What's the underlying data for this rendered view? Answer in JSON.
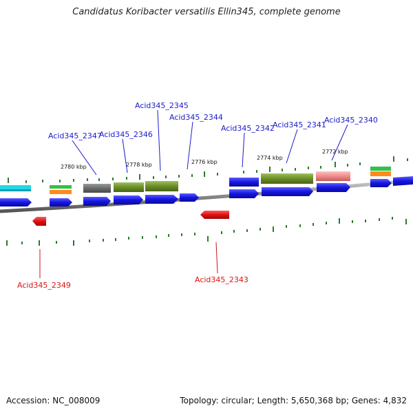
{
  "title": "Candidatus Koribacter versatilis Ellin345, complete genome",
  "footer": {
    "accession": "Accession: NC_008009",
    "summary": "Topology: circular; Length: 5,650,368 bp; Genes: 4,832"
  },
  "colors": {
    "forward_gene": "#1010e0",
    "reverse_gene": "#e01010",
    "olive": "#6b8e23",
    "gray": "#6a6a6a",
    "pink": "#f08a8a",
    "cyan": "#22d8e8",
    "green": "#33c04a",
    "orange": "#ff8c1a",
    "tick": "#2a7a2a",
    "backbone": "#888888",
    "top_label": "#1a1acc",
    "bottom_label": "#d11111"
  },
  "kbp_labels": [
    "2780 kbp",
    "2778 kbp",
    "2776 kbp",
    "2774 kbp",
    "2772 kbp"
  ],
  "top_gene_labels": [
    "Acid345_2347",
    "Acid345_2346",
    "Acid345_2345",
    "Acid345_2344",
    "Acid345_2342",
    "Acid345_2341",
    "Acid345_2340"
  ],
  "bottom_gene_labels": [
    "Acid345_2349",
    "Acid345_2343"
  ]
}
